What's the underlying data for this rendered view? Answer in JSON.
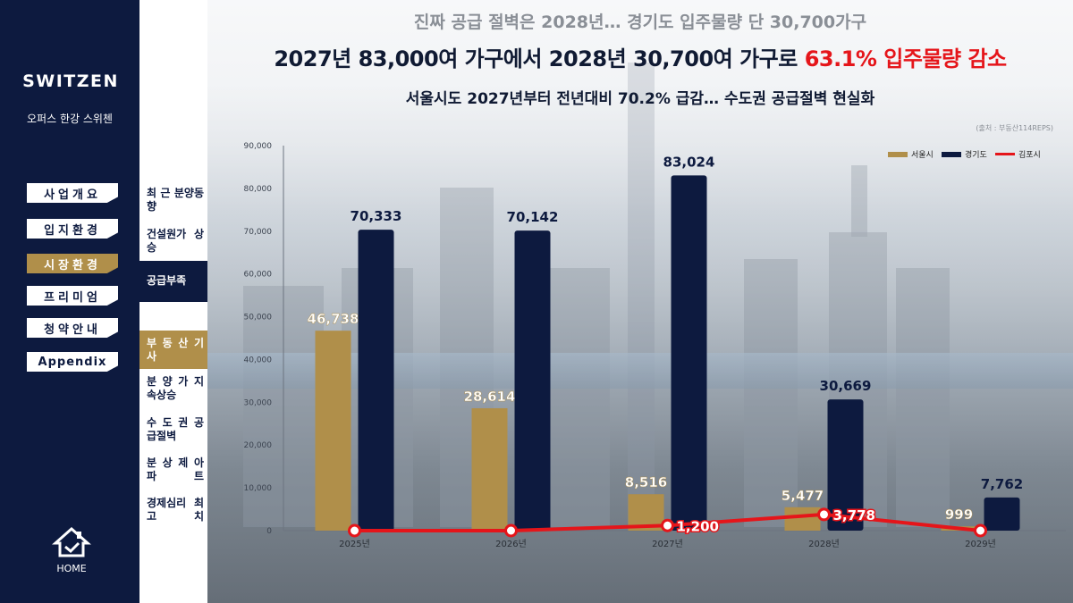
{
  "brand": {
    "logo": "SWITZEN",
    "subtitle": "오퍼스 한강 스위첸"
  },
  "nav": {
    "items": [
      {
        "label": "사업개요",
        "active": false
      },
      {
        "label": "입지환경",
        "active": false
      },
      {
        "label": "시장환경",
        "active": true
      },
      {
        "label": "프리미엄",
        "active": false
      },
      {
        "label": "청약안내",
        "active": false
      },
      {
        "label": "Appendix",
        "active": false
      }
    ],
    "home_label": "HOME"
  },
  "subnav": {
    "items": [
      {
        "label": "최 근 분양동향"
      },
      {
        "label": "건설원가 상 승"
      },
      {
        "label": "공급부족"
      },
      {
        "label": "부 동 산 기 사"
      },
      {
        "label": "분 양 가 지속상승"
      },
      {
        "label": "수 도 권 공급절벽"
      },
      {
        "label": "분 상 제 아 파 트"
      },
      {
        "label": "경제심리 최 고 치"
      }
    ]
  },
  "header": {
    "top": "진짜 공급 절벽은 2028년… 경기도 입주물량 단 30,700가구",
    "main_prefix": "2027년 83,000여 가구에서 2028년 30,700여 가구로 ",
    "main_highlight": "63.1% 입주물량 감소",
    "sub": "서울시도 2027년부터 전년대비 70.2% 급감… 수도권 공급절벽 현실화",
    "source": "(출처 : 부동산114REPS)"
  },
  "colors": {
    "navy": "#0d1a3f",
    "gold": "#b08f4a",
    "red": "#e5151a"
  },
  "chart_data": {
    "type": "bar",
    "categories": [
      "2025년",
      "2026년",
      "2027년",
      "2028년",
      "2029년"
    ],
    "ylim": [
      0,
      90000
    ],
    "yticks": [
      "0",
      "10,000",
      "20,000",
      "30,000",
      "40,000",
      "50,000",
      "60,000",
      "70,000",
      "80,000",
      "90,000"
    ],
    "series": [
      {
        "name": "서울시",
        "type": "bar",
        "color": "#b08f4a",
        "values": [
          46738,
          28614,
          8516,
          5477,
          999
        ],
        "labels": [
          "46,738",
          "28,614",
          "8,516",
          "5,477",
          "999"
        ]
      },
      {
        "name": "경기도",
        "type": "bar",
        "color": "#0d1a3f",
        "values": [
          70333,
          70142,
          83024,
          30669,
          7762
        ],
        "labels": [
          "70,333",
          "70,142",
          "83,024",
          "30,669",
          "7,762"
        ]
      },
      {
        "name": "김포시",
        "type": "line",
        "color": "#e5151a",
        "values": [
          0,
          0,
          1200,
          3778,
          0
        ],
        "labels": [
          "",
          "",
          "1,200",
          "3,778",
          ""
        ]
      }
    ]
  }
}
